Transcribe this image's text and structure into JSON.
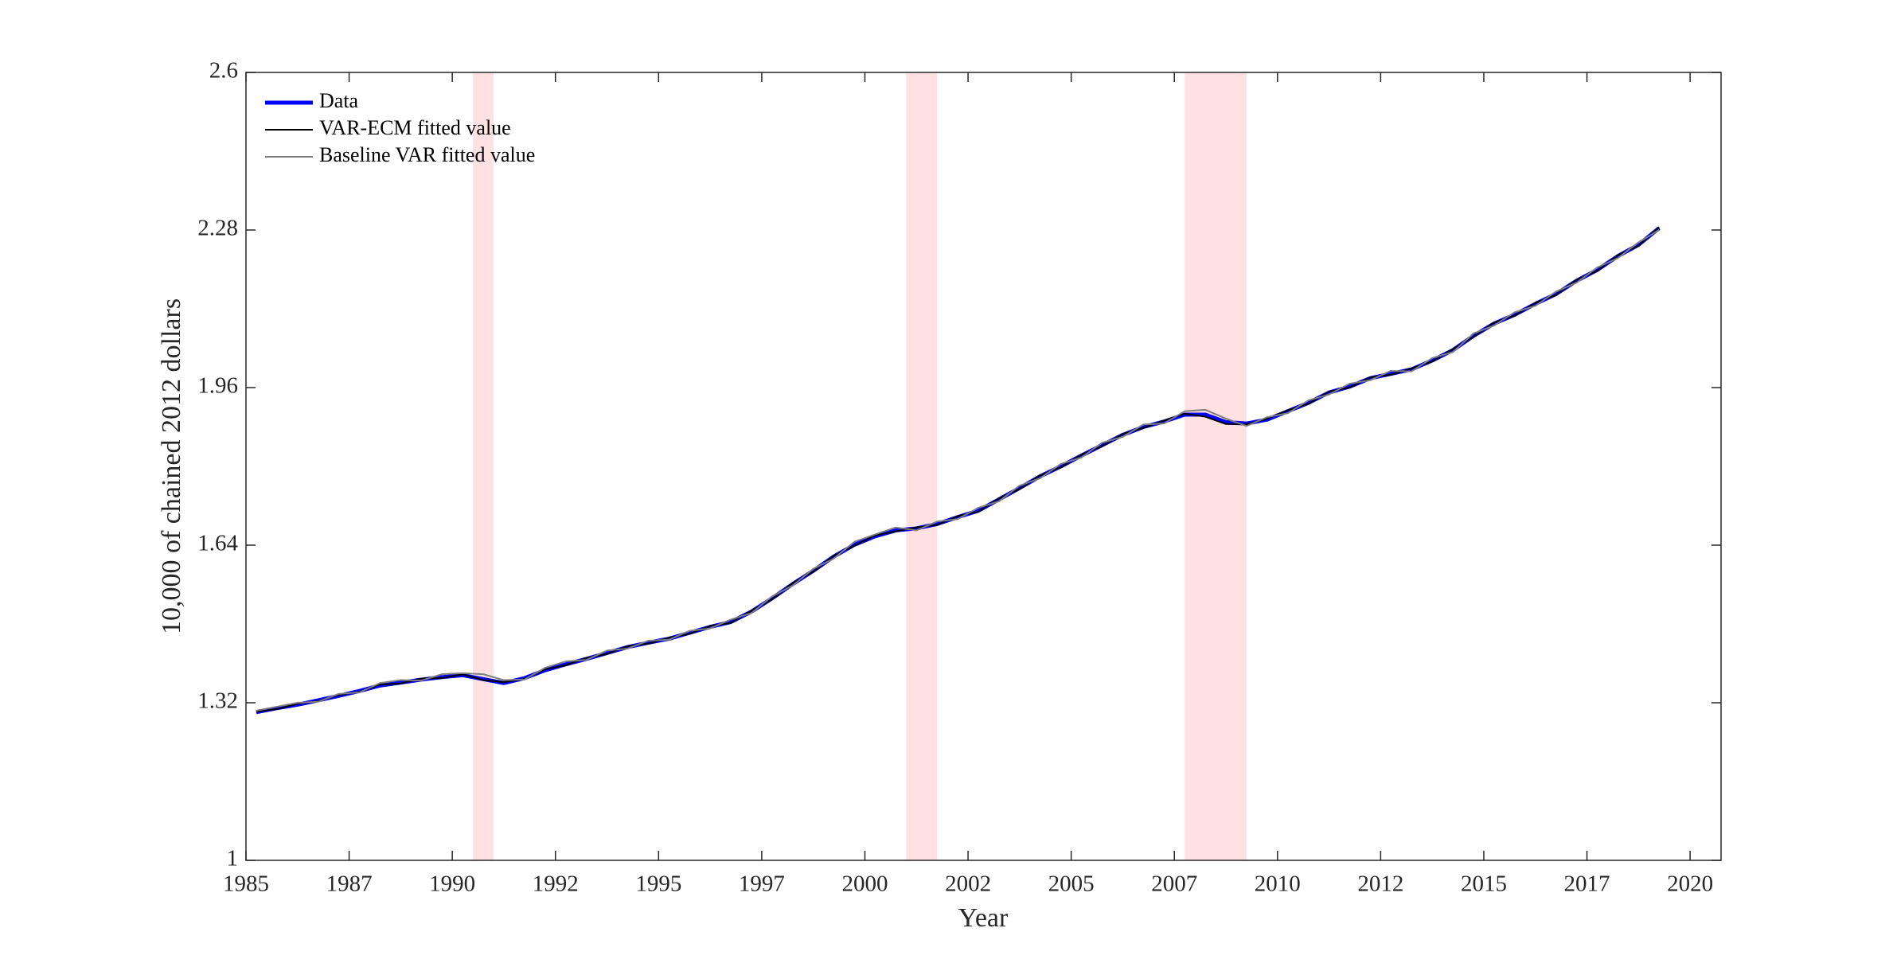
{
  "chart_data": {
    "type": "line",
    "xlabel": "Year",
    "ylabel": "10,000 of chained 2012 dollars",
    "xlim": [
      1985,
      2020.75
    ],
    "ylim": [
      1,
      2.6
    ],
    "xticks": [
      1985,
      {
        "value": 1987.5,
        "label": "1987"
      },
      1990,
      {
        "value": 1992.5,
        "label": "1992"
      },
      1995,
      {
        "value": 1997.5,
        "label": "1997"
      },
      2000,
      {
        "value": 2002.5,
        "label": "2002"
      },
      2005,
      {
        "value": 2007.5,
        "label": "2007"
      },
      2010,
      {
        "value": 2012.5,
        "label": "2012"
      },
      2015,
      {
        "value": 2017.5,
        "label": "2017"
      },
      2020
    ],
    "yticks": [
      1,
      1.32,
      1.64,
      1.96,
      2.28,
      2.6
    ],
    "legend": "upper left",
    "shaded_periods": [
      [
        1990.5,
        1991.0
      ],
      [
        2001.0,
        2001.75
      ],
      [
        2007.75,
        2009.25
      ]
    ],
    "shade_color": "#ffe1e4",
    "x": [
      1985.25,
      1985.75,
      1986.25,
      1986.75,
      1987.25,
      1987.75,
      1988.25,
      1988.75,
      1989.25,
      1989.75,
      1990.25,
      1990.75,
      1991.25,
      1991.75,
      1992.25,
      1992.75,
      1993.25,
      1993.75,
      1994.25,
      1994.75,
      1995.25,
      1995.75,
      1996.25,
      1996.75,
      1997.25,
      1997.75,
      1998.25,
      1998.75,
      1999.25,
      1999.75,
      2000.25,
      2000.75,
      2001.25,
      2001.75,
      2002.25,
      2002.75,
      2003.25,
      2003.75,
      2004.25,
      2004.75,
      2005.25,
      2005.75,
      2006.25,
      2006.75,
      2007.25,
      2007.75,
      2008.25,
      2008.75,
      2009.25,
      2009.75,
      2010.25,
      2010.75,
      2011.25,
      2011.75,
      2012.25,
      2012.75,
      2013.25,
      2013.75,
      2014.25,
      2014.75,
      2015.25,
      2015.75,
      2016.25,
      2016.75,
      2017.25,
      2017.75,
      2018.25,
      2018.75,
      2019.25
    ],
    "series": [
      {
        "name": "Data",
        "color": "#0000ff",
        "width": 5,
        "values": [
          1.301,
          1.309,
          1.316,
          1.325,
          1.334,
          1.344,
          1.355,
          1.361,
          1.367,
          1.372,
          1.376,
          1.368,
          1.36,
          1.37,
          1.386,
          1.398,
          1.409,
          1.421,
          1.433,
          1.442,
          1.45,
          1.462,
          1.474,
          1.484,
          1.505,
          1.532,
          1.561,
          1.588,
          1.617,
          1.641,
          1.658,
          1.67,
          1.674,
          1.683,
          1.697,
          1.71,
          1.733,
          1.756,
          1.78,
          1.8,
          1.822,
          1.843,
          1.864,
          1.88,
          1.891,
          1.905,
          1.905,
          1.89,
          1.887,
          1.895,
          1.912,
          1.929,
          1.95,
          1.962,
          1.979,
          1.988,
          1.997,
          2.015,
          2.036,
          2.065,
          2.09,
          2.108,
          2.13,
          2.15,
          2.177,
          2.199,
          2.227,
          2.25,
          2.284
        ]
      },
      {
        "name": "VAR-ECM fitted value",
        "color": "#000000",
        "width": 2,
        "values": [
          1.302,
          1.307,
          1.318,
          1.323,
          1.336,
          1.342,
          1.357,
          1.359,
          1.369,
          1.37,
          1.378,
          1.366,
          1.362,
          1.368,
          1.388,
          1.396,
          1.411,
          1.419,
          1.435,
          1.44,
          1.452,
          1.46,
          1.476,
          1.482,
          1.507,
          1.53,
          1.563,
          1.586,
          1.619,
          1.639,
          1.66,
          1.668,
          1.676,
          1.681,
          1.699,
          1.708,
          1.735,
          1.754,
          1.782,
          1.798,
          1.824,
          1.841,
          1.866,
          1.878,
          1.893,
          1.907,
          1.901,
          1.886,
          1.885,
          1.897,
          1.914,
          1.927,
          1.952,
          1.96,
          1.981,
          1.986,
          1.999,
          2.013,
          2.038,
          2.063,
          2.092,
          2.106,
          2.132,
          2.148,
          2.179,
          2.197,
          2.229,
          2.248,
          2.286
        ]
      },
      {
        "name": "Baseline VAR fitted value",
        "color": "#7f7f7f",
        "width": 2,
        "values": [
          1.304,
          1.312,
          1.32,
          1.322,
          1.338,
          1.341,
          1.36,
          1.366,
          1.365,
          1.378,
          1.38,
          1.378,
          1.366,
          1.367,
          1.391,
          1.404,
          1.407,
          1.426,
          1.43,
          1.446,
          1.448,
          1.466,
          1.471,
          1.489,
          1.502,
          1.536,
          1.558,
          1.592,
          1.613,
          1.647,
          1.662,
          1.676,
          1.67,
          1.688,
          1.693,
          1.716,
          1.729,
          1.761,
          1.776,
          1.805,
          1.818,
          1.848,
          1.86,
          1.885,
          1.887,
          1.912,
          1.915,
          1.897,
          1.882,
          1.9,
          1.908,
          1.934,
          1.946,
          1.968,
          1.975,
          1.994,
          1.993,
          2.02,
          2.032,
          2.07,
          2.086,
          2.113,
          2.126,
          2.155,
          2.173,
          2.204,
          2.223,
          2.255,
          2.28
        ]
      }
    ]
  }
}
